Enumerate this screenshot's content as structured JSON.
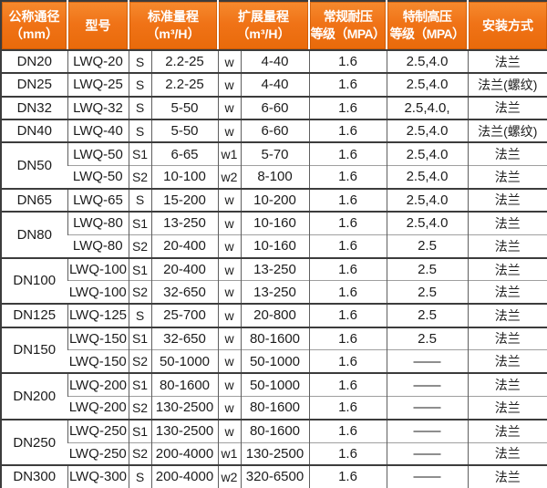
{
  "table": {
    "headers": {
      "dn_line1": "公称通径",
      "dn_line2": "（mm）",
      "model": "型号",
      "std_line1": "标准量程",
      "std_line2": "（m³/H）",
      "ext_line1": "扩展量程",
      "ext_line2": "（m³/H）",
      "reg_line1": "常规耐压",
      "reg_line2": "等级（MPA）",
      "high_line1": "特制高压",
      "high_line2": "等级（MPA）",
      "install": "安装方式"
    },
    "groups": [
      {
        "dn": "DN20",
        "rows": [
          {
            "model": "LWQ-20",
            "s": "S",
            "std": "2.2-25",
            "w": "w",
            "ext": "4-40",
            "reg": "1.6",
            "high": "2.5,4.0",
            "install": "法兰"
          }
        ]
      },
      {
        "dn": "DN25",
        "rows": [
          {
            "model": "LWQ-25",
            "s": "S",
            "std": "2.2-25",
            "w": "w",
            "ext": "4-40",
            "reg": "1.6",
            "high": "2.5,4.0",
            "install": "法兰(螺纹)"
          }
        ]
      },
      {
        "dn": "DN32",
        "rows": [
          {
            "model": "LWQ-32",
            "s": "S",
            "std": "5-50",
            "w": "w",
            "ext": "6-60",
            "reg": "1.6",
            "high": "2.5,4.0,",
            "install": "法兰"
          }
        ]
      },
      {
        "dn": "DN40",
        "rows": [
          {
            "model": "LWQ-40",
            "s": "S",
            "std": "5-50",
            "w": "w",
            "ext": "6-60",
            "reg": "1.6",
            "high": "2.5,4.0",
            "install": "法兰(螺纹)"
          }
        ]
      },
      {
        "dn": "DN50",
        "rows": [
          {
            "model": "LWQ-50",
            "s": "S1",
            "std": "6-65",
            "w": "w1",
            "ext": "5-70",
            "reg": "1.6",
            "high": "2.5,4.0",
            "install": "法兰"
          },
          {
            "model": "LWQ-50",
            "s": "S2",
            "std": "10-100",
            "w": "w2",
            "ext": "8-100",
            "reg": "1.6",
            "high": "2.5,4.0",
            "install": "法兰"
          }
        ]
      },
      {
        "dn": "DN65",
        "rows": [
          {
            "model": "LWQ-65",
            "s": "S",
            "std": "15-200",
            "w": "w",
            "ext": "10-200",
            "reg": "1.6",
            "high": "2.5,4.0",
            "install": "法兰"
          }
        ]
      },
      {
        "dn": "DN80",
        "rows": [
          {
            "model": "LWQ-80",
            "s": "S1",
            "std": "13-250",
            "w": "w",
            "ext": "10-160",
            "reg": "1.6",
            "high": "2.5,4.0",
            "install": "法兰"
          },
          {
            "model": "LWQ-80",
            "s": "S2",
            "std": "20-400",
            "w": "w",
            "ext": "10-160",
            "reg": "1.6",
            "high": "2.5",
            "install": "法兰"
          }
        ]
      },
      {
        "dn": "DN100",
        "rows": [
          {
            "model": "LWQ-100",
            "s": "S1",
            "std": "20-400",
            "w": "w",
            "ext": "13-250",
            "reg": "1.6",
            "high": "2.5",
            "install": "法兰"
          },
          {
            "model": "LWQ-100",
            "s": "S2",
            "std": "32-650",
            "w": "w",
            "ext": "13-250",
            "reg": "1.6",
            "high": "2.5",
            "install": "法兰"
          }
        ]
      },
      {
        "dn": "DN125",
        "rows": [
          {
            "model": "LWQ-125",
            "s": "S",
            "std": "25-700",
            "w": "w",
            "ext": "20-800",
            "reg": "1.6",
            "high": "2.5",
            "install": "法兰"
          }
        ]
      },
      {
        "dn": "DN150",
        "rows": [
          {
            "model": "LWQ-150",
            "s": "S1",
            "std": "32-650",
            "w": "w",
            "ext": "80-1600",
            "reg": "1.6",
            "high": "2.5",
            "install": "法兰"
          },
          {
            "model": "LWQ-150",
            "s": "S2",
            "std": "50-1000",
            "w": "w",
            "ext": "50-1000",
            "reg": "1.6",
            "high": "——",
            "install": "法兰"
          }
        ]
      },
      {
        "dn": "DN200",
        "rows": [
          {
            "model": "LWQ-200",
            "s": "S1",
            "std": "80-1600",
            "w": "w",
            "ext": "50-1000",
            "reg": "1.6",
            "high": "——",
            "install": "法兰"
          },
          {
            "model": "LWQ-200",
            "s": "S2",
            "std": "130-2500",
            "w": "w",
            "ext": "80-1600",
            "reg": "1.6",
            "high": "——",
            "install": "法兰"
          }
        ]
      },
      {
        "dn": "DN250",
        "rows": [
          {
            "model": "LWQ-250",
            "s": "S1",
            "std": "130-2500",
            "w": "w",
            "ext": "80-1600",
            "reg": "1.6",
            "high": "——",
            "install": "法兰"
          },
          {
            "model": "LWQ-250",
            "s": "S2",
            "std": "200-4000",
            "w": "w1",
            "ext": "130-2500",
            "reg": "1.6",
            "high": "——",
            "install": "法兰"
          }
        ]
      },
      {
        "dn": "DN300",
        "rows": [
          {
            "model": "LWQ-300",
            "s": "S",
            "std": "200-4000",
            "w": "w2",
            "ext": "320-6500",
            "reg": "1.6",
            "high": "——",
            "install": "法兰"
          }
        ]
      }
    ]
  },
  "colors": {
    "header_orange_top": "#f68a2e",
    "header_orange_bottom": "#e96a0a",
    "header_inner_rim": "#ba4e00",
    "header_separator": "#ffffff",
    "header_text": "#ffffff",
    "body_text": "#1c1c1c",
    "border_dark": "#3c3c3c",
    "border_light": "#9f9f9f",
    "body_background": "#ffffff"
  }
}
